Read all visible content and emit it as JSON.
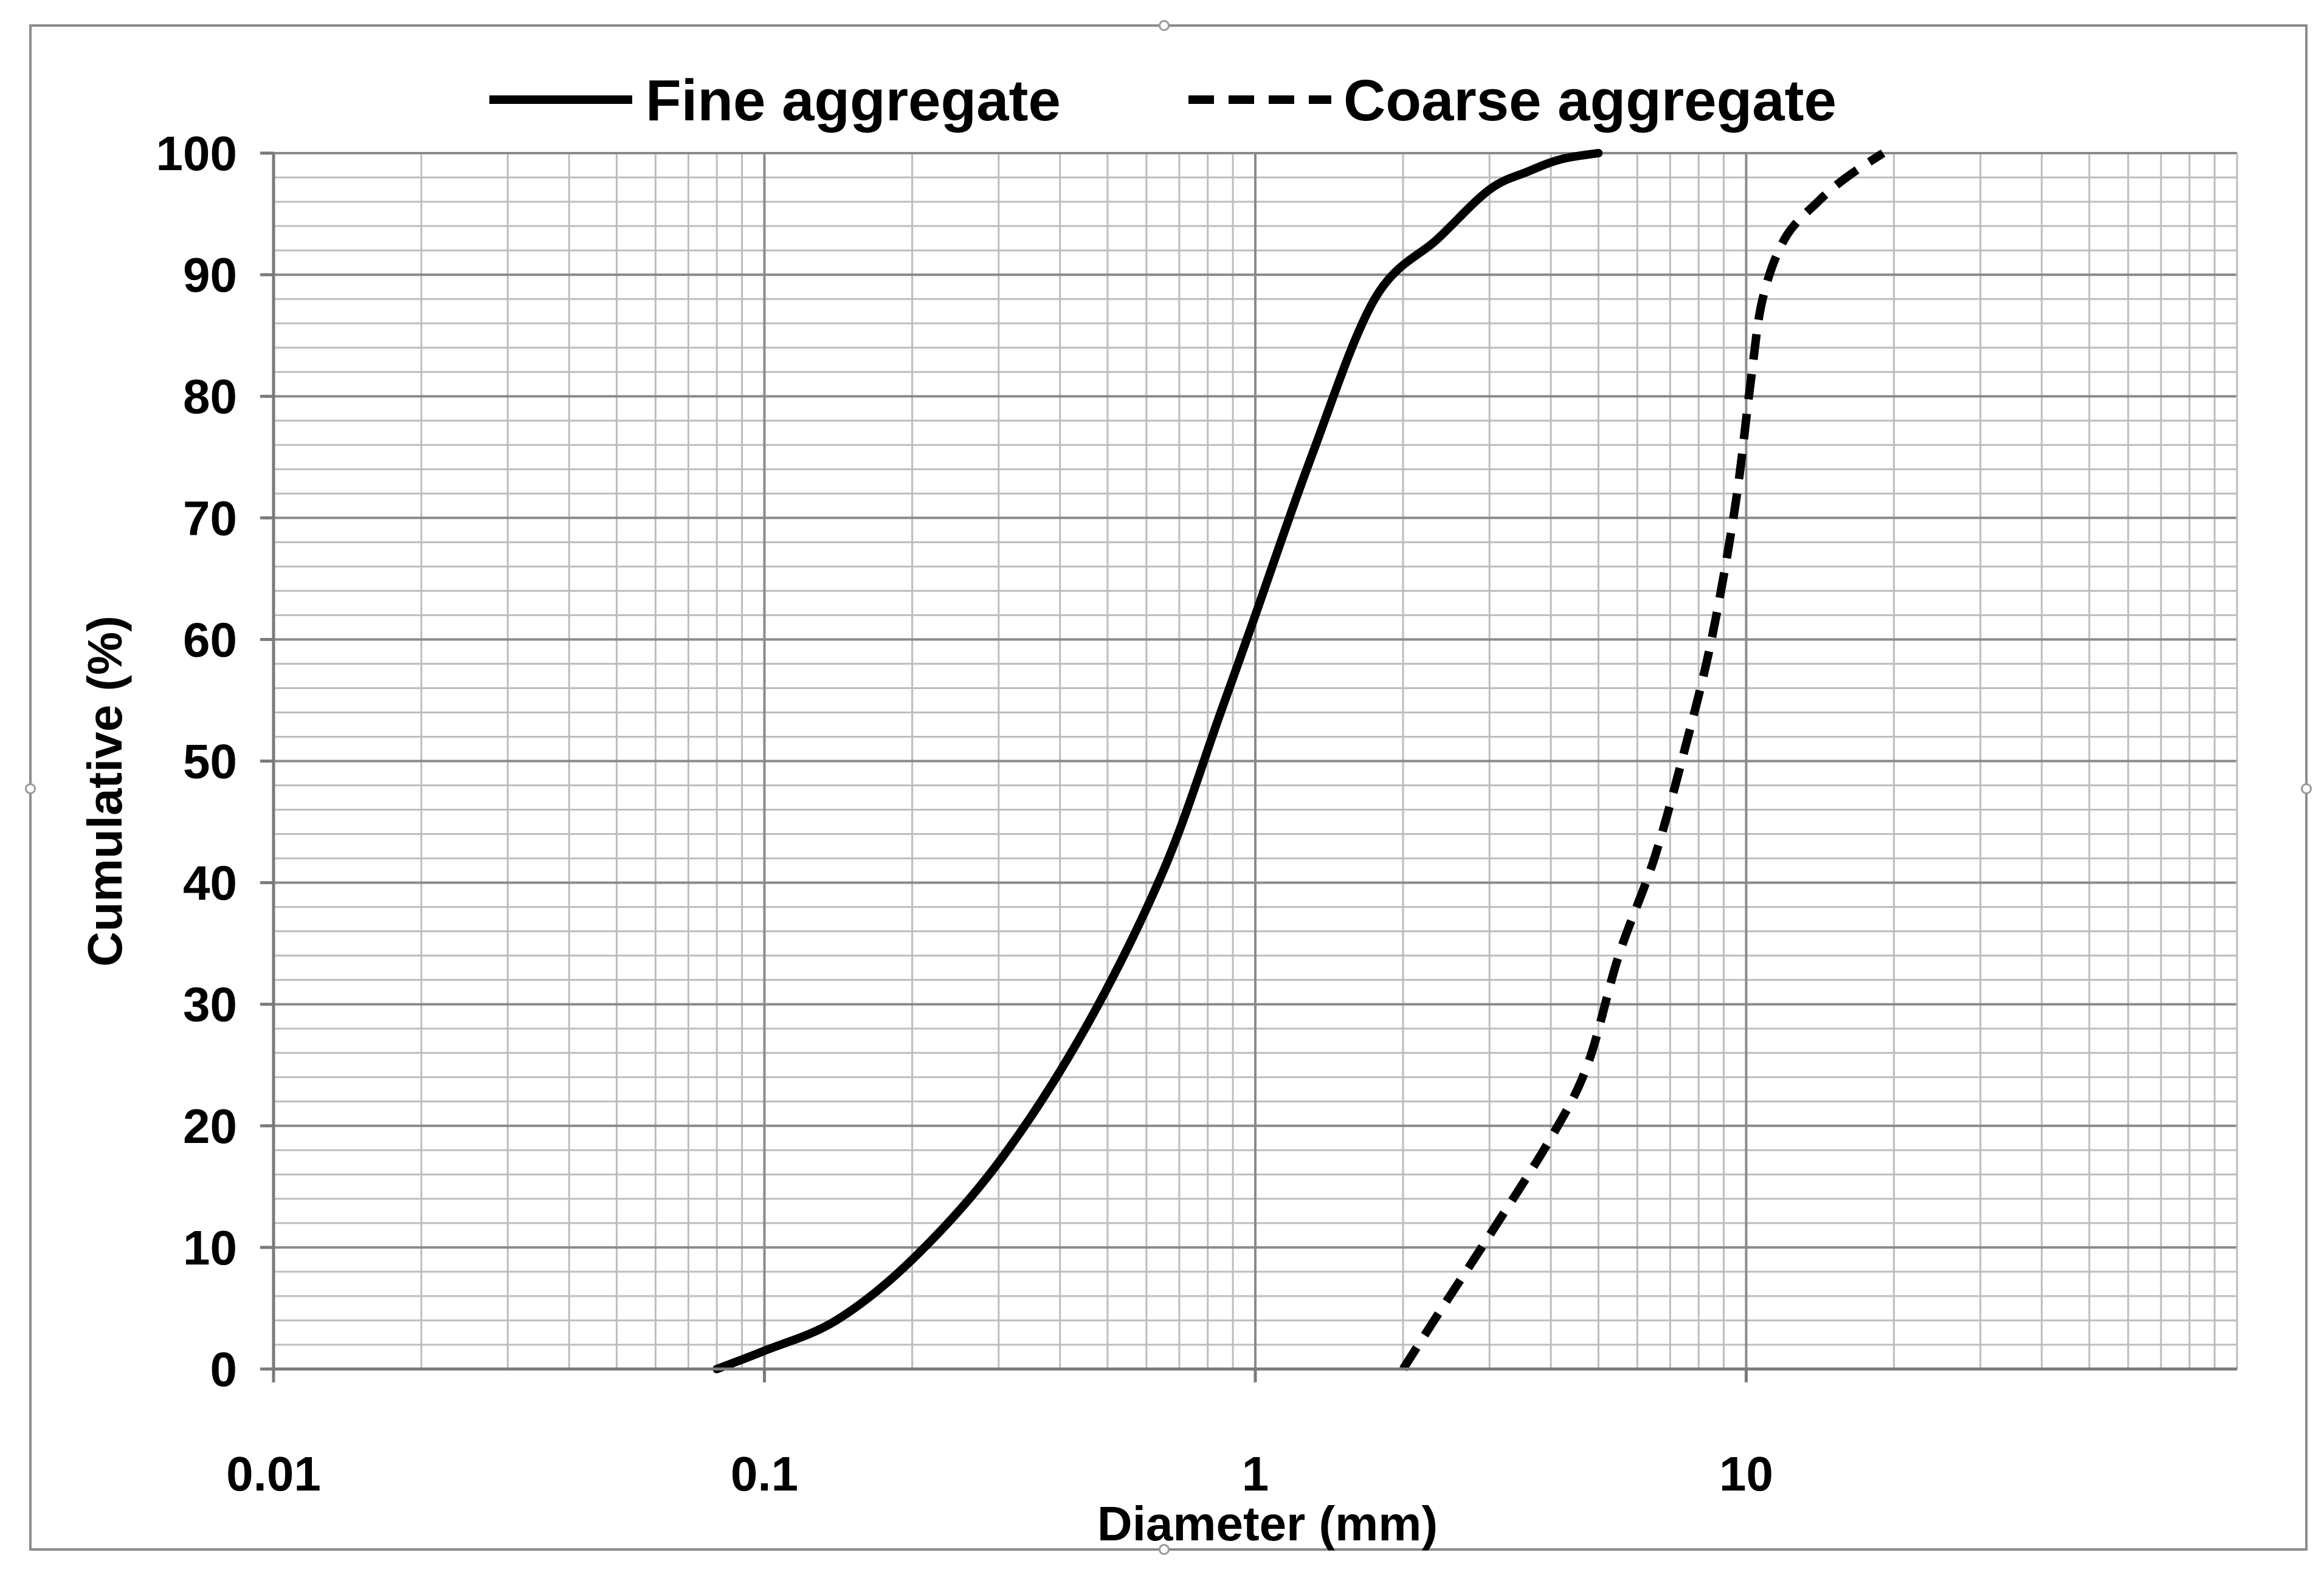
{
  "chart_data": {
    "type": "line",
    "title": "",
    "xlabel": "Diameter (mm)",
    "ylabel": "Cumulative (%)",
    "xscale": "log",
    "xlim": [
      0.01,
      100
    ],
    "ylim": [
      0,
      100
    ],
    "x_ticks": [
      0.01,
      0.1,
      1,
      10
    ],
    "x_tick_labels": [
      "0.01",
      "0.1",
      "1",
      "10"
    ],
    "y_ticks": [
      0,
      10,
      20,
      30,
      40,
      50,
      60,
      70,
      80,
      90,
      100
    ],
    "y_tick_labels": [
      "0",
      "10",
      "20",
      "30",
      "40",
      "50",
      "60",
      "70",
      "80",
      "90",
      "100"
    ],
    "grid": true,
    "minor_grid": true,
    "legend_position": "top-center",
    "series": [
      {
        "name": "Fine aggregate",
        "line_style": "solid",
        "color": "#000000",
        "x": [
          0.08,
          0.1,
          0.14,
          0.2,
          0.3,
          0.45,
          0.65,
          0.85,
          1.0,
          1.3,
          1.75,
          2.36,
          3.0,
          3.6,
          4.2,
          5.0
        ],
        "y": [
          0,
          1.5,
          4,
          9,
          17,
          28,
          41,
          54,
          62,
          75,
          88,
          93,
          97,
          98.5,
          99.5,
          100
        ]
      },
      {
        "name": "Coarse aggregate",
        "line_style": "dashed",
        "color": "#000000",
        "x": [
          2.0,
          2.4,
          3.0,
          4.0,
          4.75,
          5.5,
          6.5,
          7.5,
          8.5,
          9.5,
          10.2,
          10.8,
          12.0,
          14.0,
          16.0,
          19.0
        ],
        "y": [
          0,
          5,
          11,
          19,
          25,
          34,
          42,
          51,
          60,
          71,
          81,
          88,
          93,
          96,
          98,
          100
        ]
      }
    ]
  }
}
